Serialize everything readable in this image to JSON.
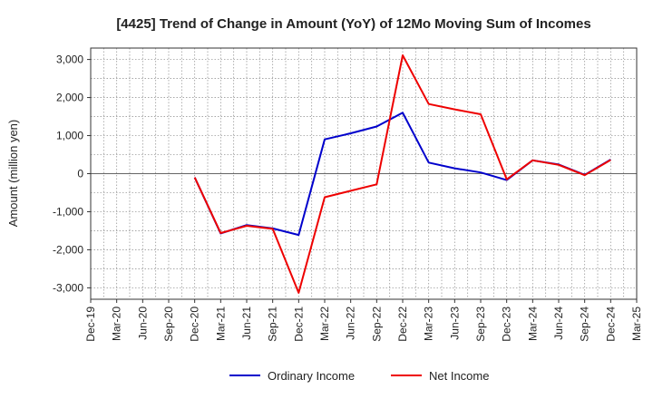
{
  "chart_data": {
    "type": "line",
    "title": "[4425]  Trend of Change in Amount (YoY) of 12Mo Moving Sum of Incomes",
    "xlabel": "",
    "ylabel": "Amount (million yen)",
    "ylim": [
      -3300,
      3300
    ],
    "yticks": [
      3000,
      2000,
      1000,
      0,
      -1000,
      -2000,
      -3000
    ],
    "ytick_labels": [
      "3,000",
      "2,000",
      "1,000",
      "0",
      "-1,000",
      "-2,000",
      "-3,000"
    ],
    "categories": [
      "Dec-19",
      "Mar-20",
      "Jun-20",
      "Sep-20",
      "Dec-20",
      "Mar-21",
      "Jun-21",
      "Sep-21",
      "Dec-21",
      "Mar-22",
      "Jun-22",
      "Sep-22",
      "Dec-22",
      "Mar-23",
      "Jun-23",
      "Sep-23",
      "Dec-23",
      "Mar-24",
      "Jun-24",
      "Sep-24",
      "Dec-24",
      "Mar-25"
    ],
    "grid": true,
    "legend_position": "bottom",
    "series": [
      {
        "name": "Ordinary Income",
        "color": "#0000cc",
        "values": [
          null,
          null,
          null,
          null,
          -100,
          -1570,
          -1350,
          -1440,
          -1610,
          900,
          1060,
          1240,
          1600,
          290,
          140,
          30,
          -170,
          350,
          240,
          -30,
          370,
          null
        ]
      },
      {
        "name": "Net Income",
        "color": "#ee0000",
        "values": [
          null,
          null,
          null,
          null,
          -100,
          -1560,
          -1370,
          -1450,
          -3130,
          -620,
          -450,
          -280,
          3110,
          1830,
          1690,
          1560,
          -150,
          350,
          230,
          -40,
          360,
          null
        ]
      }
    ]
  }
}
